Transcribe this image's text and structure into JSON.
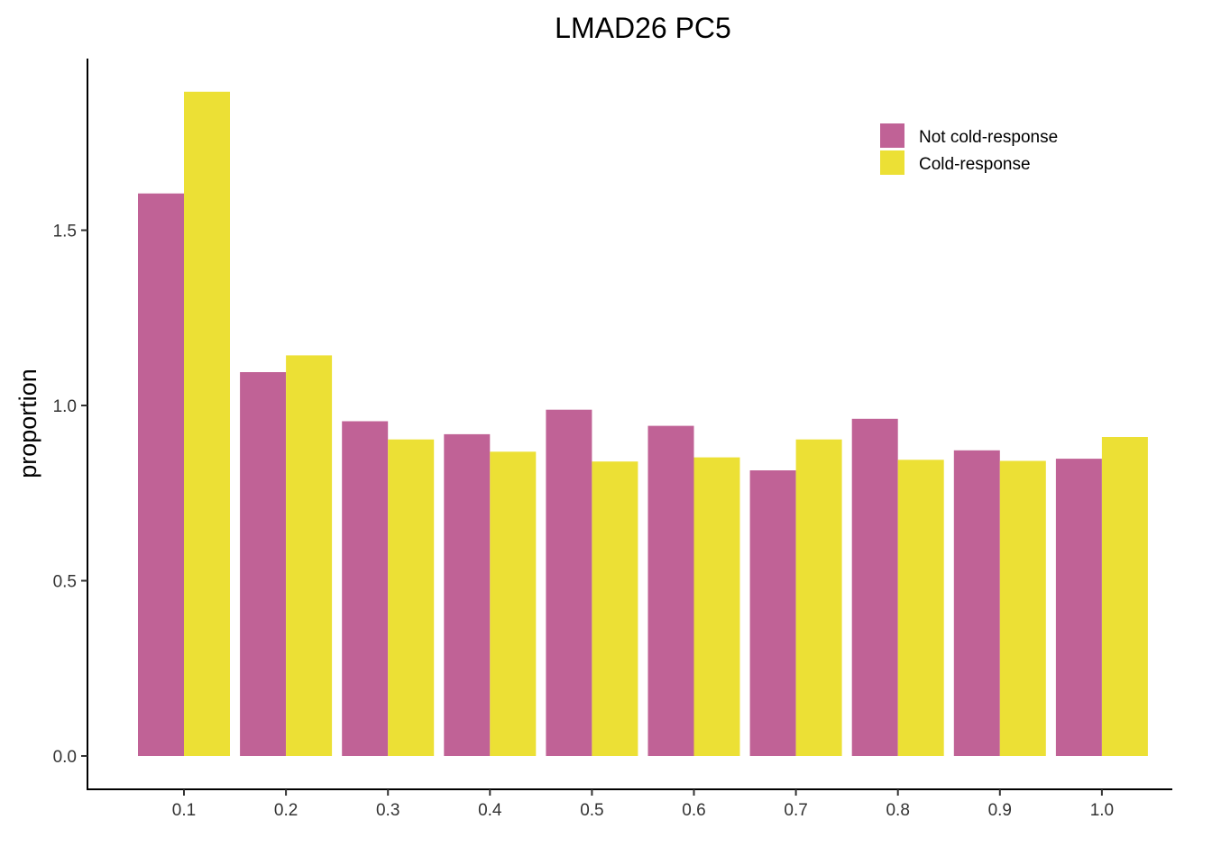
{
  "chart_data": {
    "type": "bar",
    "title": "LMAD26 PC5",
    "xlabel": "",
    "ylabel": "proportion",
    "categories": [
      "0.1",
      "0.2",
      "0.3",
      "0.4",
      "0.5",
      "0.6",
      "0.7",
      "0.8",
      "0.9",
      "1.0"
    ],
    "series": [
      {
        "name": "Not cold-response",
        "color": "#C06296",
        "values": [
          1.605,
          1.095,
          0.955,
          0.918,
          0.988,
          0.942,
          0.815,
          0.962,
          0.872,
          0.848
        ]
      },
      {
        "name": "Cold-response",
        "color": "#ECE035",
        "values": [
          1.895,
          1.143,
          0.903,
          0.868,
          0.84,
          0.852,
          0.903,
          0.845,
          0.842,
          0.91
        ]
      }
    ],
    "yticks": [
      "0.0",
      "0.5",
      "1.0",
      "1.5"
    ],
    "ylim": [
      -0.09,
      2.0
    ],
    "grid": false,
    "legend_position": "top-right"
  }
}
